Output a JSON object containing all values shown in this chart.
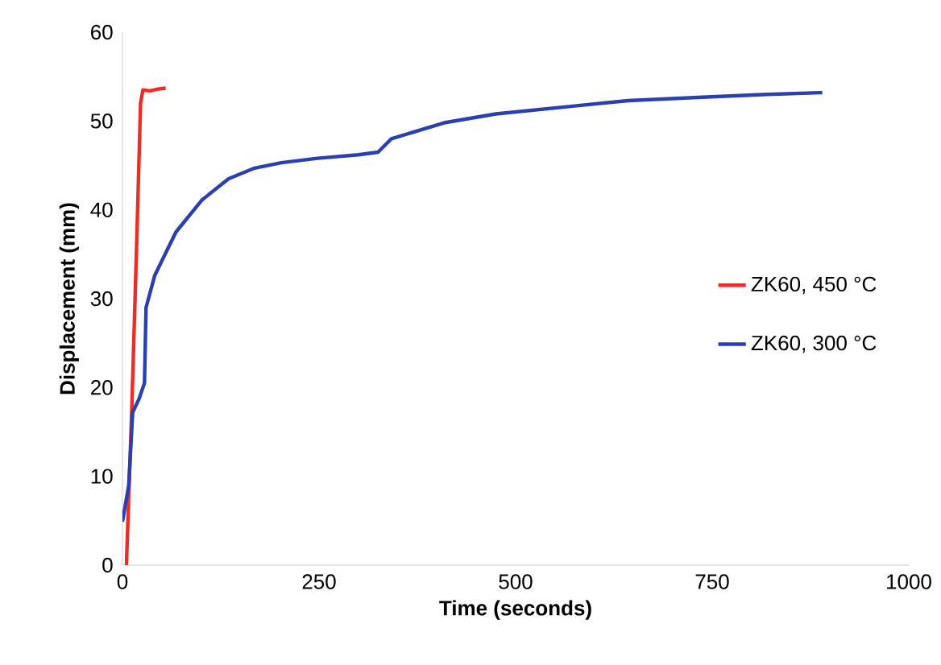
{
  "chart_data": {
    "type": "line",
    "xlabel": "Time (seconds)",
    "ylabel": "Displacement (mm)",
    "xlim": [
      0,
      1000
    ],
    "xticks": [
      0,
      250,
      500,
      750,
      1000
    ],
    "ylim": [
      0,
      60
    ],
    "yticks": [
      0,
      10,
      20,
      30,
      40,
      50,
      60
    ],
    "grid": false,
    "legend": "right",
    "marker": "none",
    "line_style": "solid",
    "series": [
      {
        "name": "ZK60, 450 °C",
        "color": "#ee2b24",
        "x": [
          5,
          12,
          18,
          23,
          26,
          35,
          45,
          55
        ],
        "values": [
          0,
          18,
          36,
          52,
          53.5,
          53.4,
          53.6,
          53.7
        ]
      },
      {
        "name": "ZK60, 300 °C",
        "color": "#2b3fb0",
        "x": [
          0,
          8,
          13,
          21,
          28,
          30,
          41,
          68,
          101,
          135,
          168,
          202,
          248,
          300,
          325,
          342,
          409,
          475,
          575,
          643,
          743,
          820,
          890
        ],
        "values": [
          4.9,
          9,
          17.2,
          18.7,
          20.5,
          29,
          32.6,
          37.5,
          41.1,
          43.5,
          44.7,
          45.3,
          45.8,
          46.2,
          46.5,
          48,
          49.8,
          50.8,
          51.7,
          52.3,
          52.7,
          53,
          53.2
        ]
      }
    ]
  }
}
